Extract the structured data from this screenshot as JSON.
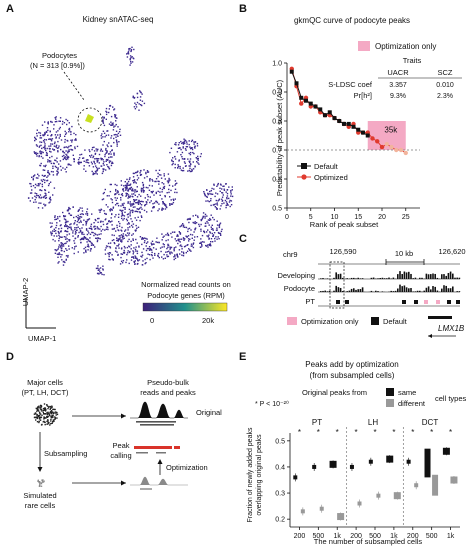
{
  "panels": {
    "A": {
      "letter": "A",
      "title": "Kidney snATAC-seq",
      "cluster_label_1": "Podocytes",
      "cluster_label_2": "(N = 313 [0.9%])",
      "xaxis": "UMAP-1",
      "yaxis": "UMAP-2",
      "legend_title_1": "Normalized read counts on",
      "legend_title_2": "Podocyte genes (RPM)",
      "legend_ticks": [
        "0",
        "20k"
      ],
      "colors": {
        "points": "#3d2a8f",
        "scale_low": "#3d1f7a",
        "scale_mid": "#21918c",
        "scale_high": "#fde725"
      }
    },
    "B": {
      "letter": "B",
      "title": "gkmQC curve of podocyte peaks",
      "highlight_label": "Optimization only",
      "traits_header": "Traits",
      "trait_cols": [
        "UACR",
        "SCZ"
      ],
      "row_labels": [
        "S-LDSC coef",
        "Pr[h²]"
      ],
      "table": [
        [
          "3.357",
          "0.010"
        ],
        [
          "9.3%",
          "2.3%"
        ]
      ],
      "box_label": "35k",
      "legend": [
        "Default",
        "Optimized"
      ],
      "xlabel": "Rank of peak subset",
      "ylabel": "Predictability of peak subset (AUC)",
      "colors": {
        "highlight": "#f4a9c4",
        "default": "#111111",
        "optimized": "#e03a2e"
      }
    },
    "C": {
      "letter": "C",
      "chrom": "chr9",
      "coord_left": "126,590",
      "scale_label": "10 kb",
      "coord_right": "126,620",
      "tracks": [
        "Developing",
        "Podocyte",
        "PT"
      ],
      "legend": [
        "Optimization only",
        "Default"
      ],
      "gene": "LMX1B"
    },
    "D": {
      "letter": "D",
      "major_cells_1": "Major cells",
      "major_cells_2": "(PT, LH, DCT)",
      "pseudo_1": "Pseudo-bulk",
      "pseudo_2": "reads and peaks",
      "original": "Original",
      "subsampling": "Subsampling",
      "peak_1": "Peak",
      "peak_2": "calling",
      "optimization": "Optimization",
      "simulated_1": "Simulated",
      "simulated_2": "rare cells"
    },
    "E": {
      "letter": "E",
      "title_1": "Peaks add by optimization",
      "title_2": "(from subsampled cells)",
      "pvalue": "* P < 10⁻²⁰",
      "original_from": "Original peaks from",
      "legend": [
        "same",
        "different"
      ],
      "cell_types": "cell types",
      "groups": [
        "PT",
        "LH",
        "DCT"
      ],
      "ylabel_1": "Fraction of newly added peaks",
      "ylabel_2": "overlapping original peaks",
      "xlabel": "The number of subsampled cells",
      "yticks": [
        "0.5",
        "0.4",
        "0.3",
        "0.2"
      ],
      "xticks": [
        "200",
        "500",
        "1k",
        "200",
        "500",
        "1k",
        "200",
        "500",
        "1k"
      ],
      "star": "*"
    }
  },
  "chart_data": [
    {
      "type": "line",
      "title": "gkmQC curve of podocyte peaks",
      "xlabel": "Rank of peak subset",
      "ylabel": "Predictability of peak subset (AUC)",
      "xlim": [
        0,
        28
      ],
      "ylim": [
        0.5,
        1.0
      ],
      "xticks": [
        0,
        5,
        10,
        15,
        20,
        25
      ],
      "yticks": [
        0.5,
        0.6,
        0.7,
        0.8,
        0.9,
        1.0
      ],
      "reference_line_y": 0.7,
      "series": [
        {
          "name": "Default",
          "x": [
            1,
            2,
            3,
            4,
            5,
            6,
            7,
            8,
            9,
            10,
            11,
            12,
            13,
            14,
            15,
            16,
            17
          ],
          "y": [
            0.97,
            0.93,
            0.88,
            0.87,
            0.86,
            0.85,
            0.84,
            0.82,
            0.83,
            0.81,
            0.8,
            0.79,
            0.79,
            0.78,
            0.77,
            0.76,
            0.75
          ]
        },
        {
          "name": "Optimized",
          "x": [
            1,
            2,
            3,
            4,
            5,
            6,
            7,
            8,
            9,
            10,
            11,
            12,
            13,
            14,
            15,
            16,
            17,
            18,
            19,
            20,
            21,
            22,
            23,
            24,
            25
          ],
          "y": [
            0.98,
            0.92,
            0.86,
            0.88,
            0.85,
            0.85,
            0.83,
            0.82,
            0.82,
            0.81,
            0.8,
            0.79,
            0.78,
            0.79,
            0.76,
            0.76,
            0.76,
            0.74,
            0.73,
            0.71,
            0.72,
            0.71,
            0.7,
            0.7,
            0.69
          ]
        }
      ]
    },
    {
      "type": "scatter",
      "title": "Peaks add by optimization",
      "xlabel": "The number of subsampled cells",
      "ylabel": "Fraction of newly added peaks overlapping original peaks",
      "ylim": [
        0.17,
        0.53
      ],
      "categories": [
        "PT 200",
        "PT 500",
        "PT 1k",
        "LH 200",
        "LH 500",
        "LH 1k",
        "DCT 200",
        "DCT 500",
        "DCT 1k"
      ],
      "series": [
        {
          "name": "same",
          "values": [
            0.36,
            0.4,
            0.41,
            0.4,
            0.42,
            0.43,
            0.42,
            0.44,
            0.46
          ]
        },
        {
          "name": "different",
          "values": [
            0.23,
            0.24,
            0.21,
            0.26,
            0.29,
            0.29,
            0.33,
            0.34,
            0.35
          ]
        }
      ]
    }
  ]
}
